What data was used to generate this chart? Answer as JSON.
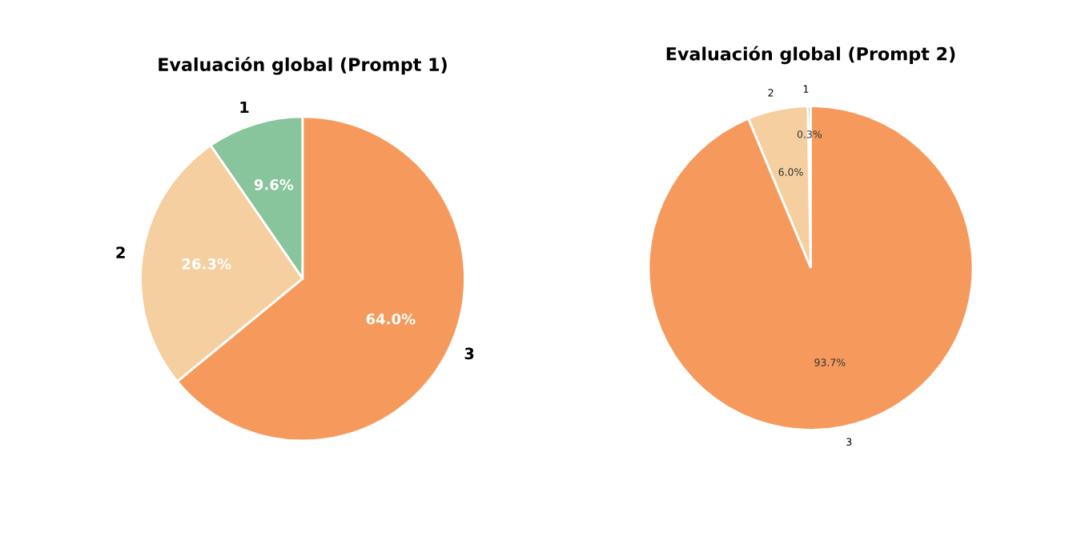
{
  "chart_data": [
    {
      "type": "pie",
      "title": "Evaluación global (Prompt 1)",
      "categories": [
        "1",
        "2",
        "3"
      ],
      "values": [
        9.6,
        26.3,
        64.0
      ],
      "colors": [
        "#88c49c",
        "#f5cfa0",
        "#f59a5c"
      ],
      "value_labels": [
        "9.6%",
        "26.3%",
        "64.0%"
      ]
    },
    {
      "type": "pie",
      "title": "Evaluación global (Prompt 2)",
      "categories": [
        "1",
        "2",
        "3"
      ],
      "values": [
        0.3,
        6.0,
        93.7
      ],
      "colors": [
        "#88c49c",
        "#f5cfa0",
        "#f59a5c"
      ],
      "value_labels": [
        "0.3%",
        "6.0%",
        "93.7%"
      ]
    }
  ]
}
